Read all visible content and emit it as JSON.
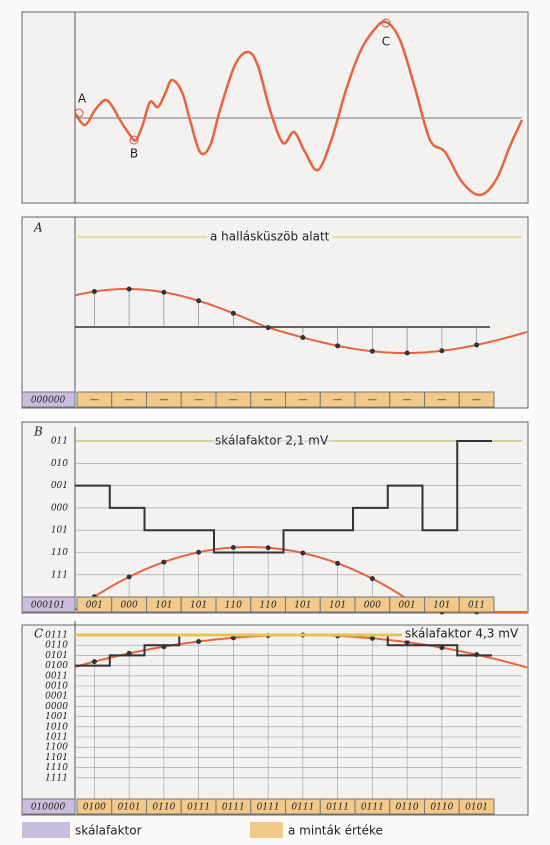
{
  "panel1": {
    "points": [
      "A",
      "B",
      "C"
    ]
  },
  "panel2": {
    "label": "A",
    "note": "a hallásküszöb alatt",
    "scale_code": "000000",
    "samples": [
      "—",
      "—",
      "—",
      "—",
      "—",
      "—",
      "—",
      "—",
      "—",
      "—",
      "—",
      "—"
    ]
  },
  "panel3": {
    "label": "B",
    "note": "skálafaktor 2,1 mV",
    "scale_code": "000101",
    "levels": [
      "011",
      "010",
      "001",
      "000",
      "101",
      "110",
      "111"
    ],
    "samples": [
      "001",
      "000",
      "101",
      "101",
      "110",
      "110",
      "101",
      "101",
      "000",
      "001",
      "101",
      "011"
    ]
  },
  "panel4": {
    "label": "C",
    "note": "skálafaktor 4,3 mV",
    "scale_code": "010000",
    "levels": [
      "0111",
      "0110",
      "0101",
      "0100",
      "0011",
      "0010",
      "0001",
      "0000",
      "1001",
      "1010",
      "1011",
      "1100",
      "1101",
      "1110",
      "1111"
    ],
    "samples": [
      "0100",
      "0101",
      "0110",
      "0111",
      "0111",
      "0111",
      "0111",
      "0111",
      "0111",
      "0110",
      "0110",
      "0101"
    ]
  },
  "legend": {
    "scale": "skálafaktor",
    "samples": "a minták értéke"
  }
}
